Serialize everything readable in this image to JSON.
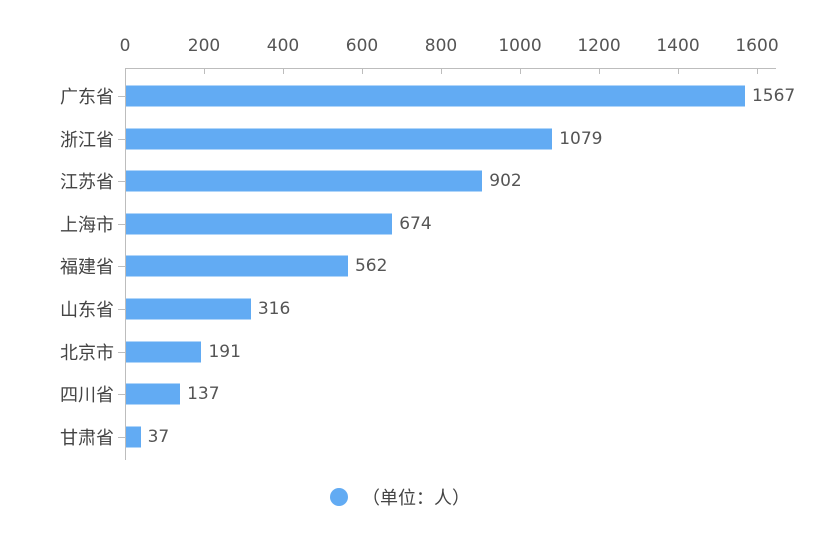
{
  "chart_data": {
    "type": "bar",
    "orientation": "horizontal",
    "title": "",
    "xlabel": "",
    "ylabel": "",
    "xlim": [
      0,
      1650
    ],
    "x_ticks": [
      0,
      200,
      400,
      600,
      800,
      1000,
      1200,
      1400,
      1600
    ],
    "x_axis_position": "top",
    "grid": false,
    "categories": [
      "广东省",
      "浙江省",
      "江苏省",
      "上海市",
      "福建省",
      "山东省",
      "北京市",
      "四川省",
      "甘肃省"
    ],
    "series": [
      {
        "name": "（单位：人）",
        "color": "#62abf3",
        "values": [
          1567,
          1079,
          902,
          674,
          562,
          316,
          191,
          137,
          37
        ]
      }
    ],
    "data_labels": true,
    "legend": {
      "position": "bottom",
      "entries": [
        "（单位：人）"
      ]
    }
  },
  "legend": {
    "label": "（单位：人）",
    "color": "#62abf3"
  }
}
